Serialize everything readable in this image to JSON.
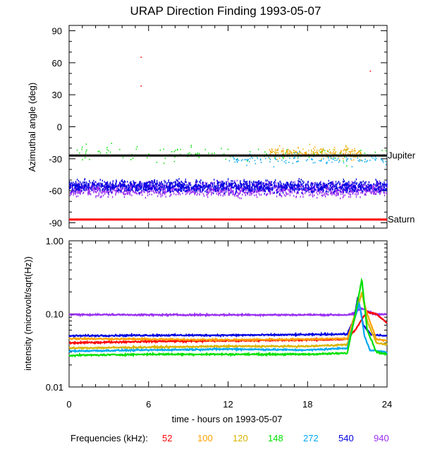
{
  "title": "URAP Direction Finding  1993-05-07",
  "xlabel": "time - hours on 1993-05-07",
  "legend_label": "Frequencies (kHz):",
  "colors": {
    "52": "#ff0000",
    "100": "#ffa000",
    "120": "#d8b400",
    "148": "#00e000",
    "272": "#00a8f0",
    "540": "#0000e0",
    "940": "#9a30f0",
    "axis": "#000000"
  },
  "chart_data": [
    {
      "type": "scatter",
      "ylabel": "Azimuthal angle (deg)",
      "xlim": [
        0,
        24
      ],
      "ylim": [
        -95,
        95
      ],
      "x_ticks": [
        "0",
        "6",
        "12",
        "18",
        "24"
      ],
      "y_ticks": [
        "90",
        "60",
        "30",
        "0",
        "-30",
        "-60",
        "-90"
      ],
      "reference_lines": [
        {
          "name": "Jupiter",
          "y": -27,
          "color": "#000000"
        },
        {
          "name": "Saturn",
          "y": -87,
          "color": "#ff0000"
        }
      ],
      "series": [
        {
          "name": "940",
          "note": "dense band",
          "x_range": [
            0,
            24
          ],
          "y_center": -58,
          "y_spread": 6
        },
        {
          "name": "540",
          "note": "dense band",
          "x_range": [
            0,
            24
          ],
          "y_center": -55,
          "y_spread": 5
        },
        {
          "name": "148",
          "note": "scattered",
          "x_range": [
            0,
            24
          ],
          "y_center": -25,
          "y_spread": 6
        },
        {
          "name": "120",
          "note": "scattered",
          "x_range": [
            15,
            22
          ],
          "y_center": -24,
          "y_spread": 5
        },
        {
          "name": "100",
          "note": "scattered",
          "x_range": [
            15,
            22
          ],
          "y_center": -24,
          "y_spread": 5
        },
        {
          "name": "272",
          "note": "scattered",
          "x_range": [
            12,
            24
          ],
          "y_center": -30,
          "y_spread": 5
        },
        {
          "name": "52",
          "points": [
            [
              5.4,
              65
            ],
            [
              5.4,
              38
            ],
            [
              22.7,
              52
            ]
          ]
        }
      ]
    },
    {
      "type": "line",
      "ylabel": "intensity (microvolt/sqrt(Hz))",
      "yscale": "log",
      "xlim": [
        0,
        24
      ],
      "ylim": [
        0.01,
        1.0
      ],
      "x_ticks": [
        "0",
        "6",
        "12",
        "18",
        "24"
      ],
      "y_ticks": [
        "1.00",
        "0.10",
        "0.01"
      ],
      "series": [
        {
          "name": "940",
          "x": [
            0,
            6,
            12,
            18,
            21,
            21.5,
            22,
            22.5,
            23,
            24
          ],
          "y": [
            0.098,
            0.097,
            0.097,
            0.097,
            0.097,
            0.1,
            0.12,
            0.11,
            0.1,
            0.098
          ]
        },
        {
          "name": "540",
          "x": [
            0,
            6,
            12,
            18,
            21,
            21.5,
            21.8,
            22.2,
            22.8,
            24
          ],
          "y": [
            0.05,
            0.051,
            0.051,
            0.052,
            0.053,
            0.085,
            0.17,
            0.07,
            0.052,
            0.05
          ]
        },
        {
          "name": "52",
          "x": [
            0,
            6,
            12,
            18,
            21,
            21.6,
            22.2,
            22.5,
            23.2,
            24
          ],
          "y": [
            0.04,
            0.042,
            0.043,
            0.044,
            0.045,
            0.06,
            0.09,
            0.105,
            0.1,
            0.075
          ]
        },
        {
          "name": "100",
          "x": [
            0,
            6,
            12,
            18,
            21,
            21.6,
            22.1,
            22.5,
            23.2,
            24
          ],
          "y": [
            0.046,
            0.045,
            0.044,
            0.045,
            0.046,
            0.1,
            0.19,
            0.1,
            0.045,
            0.043
          ]
        },
        {
          "name": "120",
          "x": [
            0,
            6,
            12,
            18,
            21,
            21.6,
            22.1,
            22.5,
            23.2,
            24
          ],
          "y": [
            0.034,
            0.035,
            0.036,
            0.036,
            0.038,
            0.09,
            0.2,
            0.08,
            0.04,
            0.038
          ]
        },
        {
          "name": "272",
          "x": [
            0,
            6,
            12,
            18,
            21,
            21.5,
            21.9,
            22.3,
            22.7,
            24
          ],
          "y": [
            0.031,
            0.032,
            0.033,
            0.032,
            0.034,
            0.08,
            0.14,
            0.05,
            0.032,
            0.03
          ]
        },
        {
          "name": "148",
          "x": [
            0,
            6,
            12,
            18,
            21,
            21.6,
            22.1,
            22.5,
            23.2,
            24
          ],
          "y": [
            0.027,
            0.028,
            0.028,
            0.028,
            0.029,
            0.1,
            0.3,
            0.06,
            0.03,
            0.028
          ]
        }
      ]
    }
  ]
}
